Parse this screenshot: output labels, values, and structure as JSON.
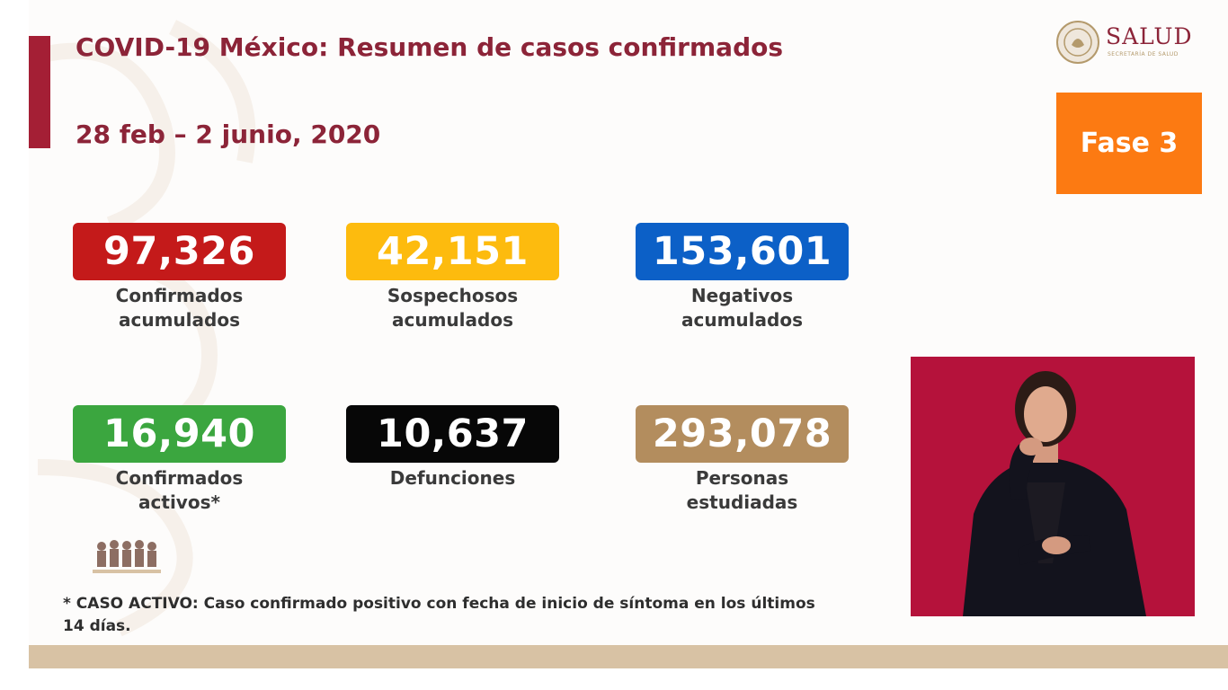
{
  "slide": {
    "title": "COVID-19 México: Resumen de casos confirmados",
    "date_range": "28 feb – 2 junio, 2020",
    "logo": {
      "name": "SALUD",
      "subtitle": "SECRETARÍA DE SALUD",
      "icon": "national-seal-icon"
    },
    "phase": "Fase 3",
    "stats": [
      {
        "value": "97,326",
        "label": "Confirmados\nacumulados",
        "color": "#c41a1a"
      },
      {
        "value": "42,151",
        "label": "Sospechosos\nacumulados",
        "color": "#fdbb0e"
      },
      {
        "value": "153,601",
        "label": "Negativos\nacumulados",
        "color": "#0c60c7"
      },
      {
        "value": "16,940",
        "label": "Confirmados\nactivos*",
        "color": "#3ba63f"
      },
      {
        "value": "10,637",
        "label": "Defunciones",
        "color": "#070707"
      },
      {
        "value": "293,078",
        "label": "Personas\nestudiadas",
        "color": "#b38d5e"
      }
    ],
    "footnote": "* CASO ACTIVO: Caso confirmado positivo con fecha de inicio de síntoma en los últimos 14 días.",
    "colors": {
      "title": "#8c2438",
      "accent_bar": "#a41f35",
      "phase_bg": "#fc7a12",
      "interpreter_bg": "#b5123b",
      "band": "#d8c2a4"
    }
  }
}
